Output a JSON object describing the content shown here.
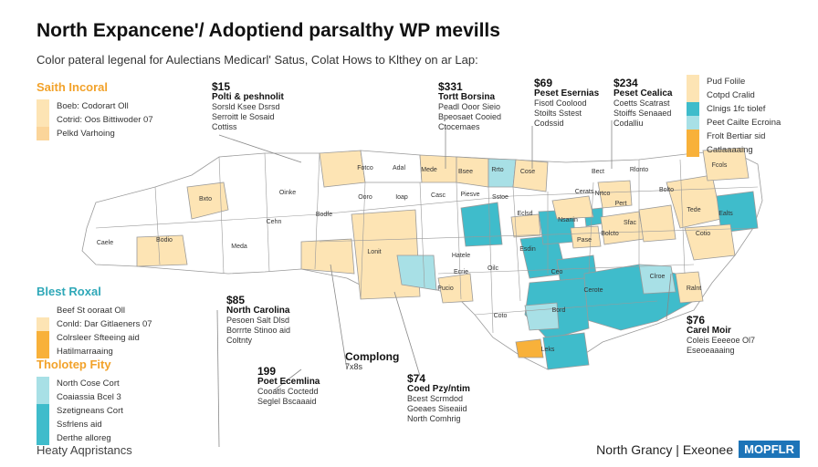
{
  "title": "North Expancene'/ Adoptiend parsalthy WP mevills",
  "subtitle": "Color pateral legenal for Aulectians Medicarl' Satus, Colat Hows to Klthey on ar Lap:",
  "colors": {
    "light_orange": "#fde4b4",
    "orange": "#f8b13a",
    "light_teal": "#a8e0e6",
    "teal": "#3fbccb",
    "border": "#9a9a9a"
  },
  "legends": [
    {
      "heading": "Saith Incoral",
      "heading_color": "#f2a22a",
      "rows": [
        {
          "text": "Boeb: Codorart Oll",
          "color": "#fde4b4"
        },
        {
          "text": "Cotrid: Oos Bittiwoder 07",
          "color": "#fde4b4"
        },
        {
          "text": "Pelkd Varhoing",
          "color": "#fbd59a"
        }
      ]
    },
    {
      "heading": "Blest Roxal",
      "heading_color": "#2fa8b8",
      "rows": [
        {
          "text": "Beef St ooraat Oll",
          "color": "#ffffff"
        },
        {
          "text": "Conld: Dar Gitlaeners 07",
          "color": "#fde4b4"
        },
        {
          "text": "Colrsleer Sfteeing aid",
          "color": "#f8b13a"
        },
        {
          "text": "Hatilmarraaing",
          "color": "#f8b13a"
        }
      ]
    },
    {
      "heading": "Tholotep Fity",
      "heading_color": "#f2a22a",
      "rows": [
        {
          "text": "North Cose Cort",
          "color": "#a8e0e6"
        },
        {
          "text": "Coaiassia Bcel   3",
          "color": "#a8e0e6"
        },
        {
          "text": "Szetigneans Cort",
          "color": "#3fbccb"
        },
        {
          "text": "Ssfrlens aid",
          "color": "#3fbccb"
        },
        {
          "text": "Derthe alloreg",
          "color": "#3fbccb"
        }
      ]
    },
    {
      "heading": "",
      "heading_color": "#222",
      "rows": [
        {
          "text": "Pud Folile",
          "color": "#fde4b4"
        },
        {
          "text": "Cotpd Cralid",
          "color": "#fde4b4"
        },
        {
          "text": "Clnigs 1fc tiolef",
          "color": "#3fbccb"
        },
        {
          "text": "Peet Cailte Ecroina",
          "color": "#a8e0e6"
        },
        {
          "text": "Frolt Bertiar sid",
          "color": "#f8b13a"
        },
        {
          "text": "Catlaaaaing",
          "color": "#f8b13a"
        }
      ]
    }
  ],
  "callouts": [
    {
      "value": "$15",
      "title": "Polti & peshnolit",
      "lines": [
        "Sorsld Ksee Dsrsd",
        "Serroitt le Sosaid",
        "Cottiss"
      ]
    },
    {
      "value": "$331",
      "title": "Tortt Borsina",
      "lines": [
        "Peadl Ooor Sieio",
        "Bpeosaet Cooied",
        "Ctocemaes"
      ]
    },
    {
      "value": "$69",
      "title": "Peset Esernias",
      "lines": [
        "Fisotl Coolood",
        "Stoilts Sstest",
        "Codssid"
      ]
    },
    {
      "value": "$234",
      "title": "Peset Cealica",
      "lines": [
        "Coetts Scatrast",
        "Stoiffs Senaaed",
        "Codalliu"
      ]
    },
    {
      "value": "$85",
      "title": "North Carolina",
      "lines": [
        "Pesoen Salt Dlsd",
        "Borrrte Stinoo aid",
        "Coltnty"
      ]
    },
    {
      "value": "199",
      "title": "Poet Ecemlina",
      "lines": [
        "Cooatls Coctedd",
        "Seglel Bscaaaid"
      ]
    },
    {
      "value": "$74",
      "title": "Coed Pzy/ntim",
      "lines": [
        "Bcest Scrmdod",
        "Goeaes Siseaiid",
        "North Comhrig"
      ]
    },
    {
      "value": "$76",
      "title": "Carel Moir",
      "lines": [
        "Coleis Eeeeoe Ol7",
        "Eseoeaaaing"
      ]
    },
    {
      "value": "Complong",
      "title": "",
      "lines": [
        "7x8s"
      ]
    }
  ],
  "county_labels": [
    "Fotco",
    "Adal",
    "Mede",
    "Bsee",
    "Rrto",
    "Cose",
    "Bxto",
    "Oinke",
    "Bodfe",
    "Ooro",
    "Ioap",
    "Casc",
    "Piesve",
    "Sstoe",
    "Caele",
    "Bodio",
    "Meda",
    "Cehn",
    "Lonit",
    "Hatele",
    "Oilc",
    "Ecrie",
    "Pucio",
    "Esdin",
    "Ceo",
    "Nsanin",
    "Pase",
    "Bolcto",
    "Sfac",
    "Nrtco",
    "Rlonto",
    "Bolto",
    "Tede",
    "Ealts",
    "Cotio",
    "Clroe",
    "Ralnt",
    "Cerote",
    "Bord",
    "Leks",
    "Coto",
    "Eclsd",
    "Pert",
    "Cerats",
    "Fcols",
    "Bect"
  ],
  "footer": {
    "left": "Heaty Aqpristancs",
    "right_text": "North Grancy | Exeonee",
    "badge": "MOPFLR"
  }
}
